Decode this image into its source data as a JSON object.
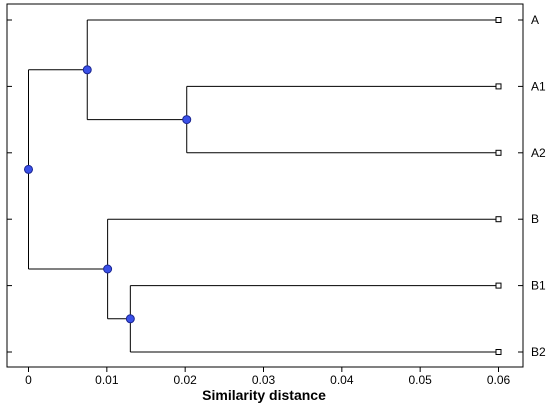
{
  "chart_data": {
    "type": "dendrogram",
    "xlabel": "Similarity distance",
    "xlim": [
      -0.0025,
      0.0625
    ],
    "x_ticks": [
      0,
      0.01,
      0.02,
      0.03,
      0.04,
      0.05,
      0.06
    ],
    "x_tick_labels": [
      "0",
      "0.01",
      "0.02",
      "0.03",
      "0.04",
      "0.05",
      "0.06"
    ],
    "leaves": [
      {
        "id": "A",
        "label": "A"
      },
      {
        "id": "A1",
        "label": "A1"
      },
      {
        "id": "A2",
        "label": "A2"
      },
      {
        "id": "B",
        "label": "B"
      },
      {
        "id": "B1",
        "label": "B1"
      },
      {
        "id": "B2",
        "label": "B2"
      }
    ],
    "leaf_distance": 0.06,
    "merges": [
      {
        "id": "nA12",
        "children": [
          "A1",
          "A2"
        ],
        "distance": 0.0202
      },
      {
        "id": "nA",
        "children": [
          "A",
          "nA12"
        ],
        "distance": 0.0075
      },
      {
        "id": "nB12",
        "children": [
          "B1",
          "B2"
        ],
        "distance": 0.013
      },
      {
        "id": "nB",
        "children": [
          "B",
          "nB12"
        ],
        "distance": 0.0101
      },
      {
        "id": "root",
        "children": [
          "nA",
          "nB"
        ],
        "distance": 0.0
      }
    ],
    "colors": {
      "node_fill": "#3a50e8",
      "node_stroke": "#1a2590",
      "line": "#000000",
      "leaf_marker": "#ffffff"
    },
    "grid": false,
    "legend": "none"
  }
}
